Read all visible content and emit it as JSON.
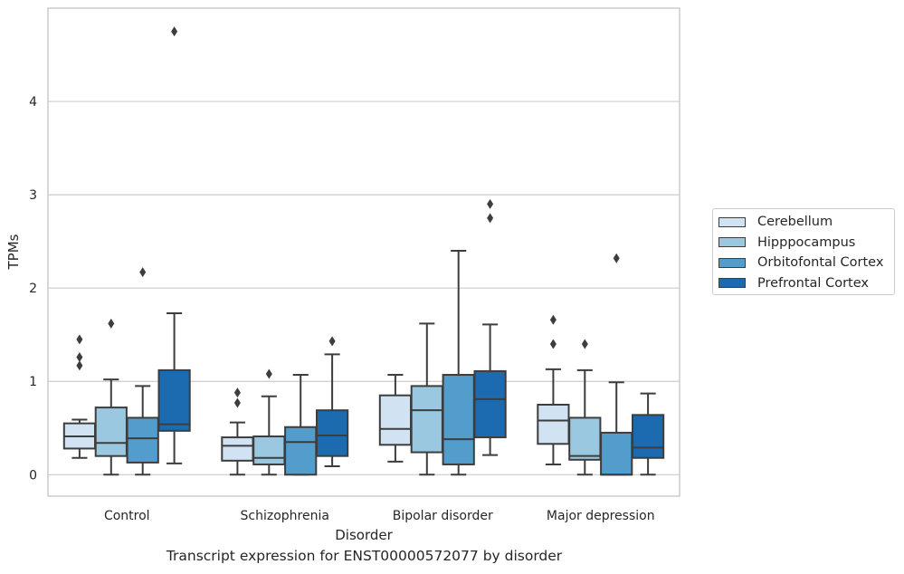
{
  "chart_data": {
    "type": "box",
    "title": "",
    "xlabel": "Disorder",
    "ylabel": "TPMs",
    "caption": "Transcript expression for ENST00000572077 by disorder",
    "ylim": [
      -0.23,
      5.0
    ],
    "yticks": [
      "0",
      "1",
      "2",
      "3",
      "4"
    ],
    "grid": true,
    "legend_position": "right",
    "categories": [
      "Control",
      "Schizophrenia",
      "Bipolar disorder",
      "Major depression"
    ],
    "series": [
      {
        "name": "Cerebellum",
        "color": "#d1e3f3",
        "boxes": [
          {
            "min": 0.18,
            "q1": 0.28,
            "median": 0.41,
            "q3": 0.55,
            "max": 0.59,
            "outliers": [
              1.17,
              1.26,
              1.45
            ]
          },
          {
            "min": 0.0,
            "q1": 0.15,
            "median": 0.31,
            "q3": 0.4,
            "max": 0.56,
            "outliers": [
              0.77,
              0.88
            ]
          },
          {
            "min": 0.14,
            "q1": 0.32,
            "median": 0.49,
            "q3": 0.85,
            "max": 1.07,
            "outliers": []
          },
          {
            "min": 0.11,
            "q1": 0.33,
            "median": 0.58,
            "q3": 0.75,
            "max": 1.13,
            "outliers": [
              1.4,
              1.66
            ]
          }
        ]
      },
      {
        "name": "Hipppocampus",
        "color": "#9ac8e0",
        "boxes": [
          {
            "min": 0.0,
            "q1": 0.2,
            "median": 0.34,
            "q3": 0.72,
            "max": 1.02,
            "outliers": [
              1.62
            ]
          },
          {
            "min": 0.0,
            "q1": 0.11,
            "median": 0.18,
            "q3": 0.41,
            "max": 0.84,
            "outliers": [
              1.08
            ]
          },
          {
            "min": 0.0,
            "q1": 0.24,
            "median": 0.69,
            "q3": 0.95,
            "max": 1.62,
            "outliers": []
          },
          {
            "min": 0.0,
            "q1": 0.16,
            "median": 0.2,
            "q3": 0.61,
            "max": 1.12,
            "outliers": [
              1.4
            ]
          }
        ]
      },
      {
        "name": "Orbitofontal Cortex",
        "color": "#529dcc",
        "boxes": [
          {
            "min": 0.0,
            "q1": 0.13,
            "median": 0.39,
            "q3": 0.61,
            "max": 0.95,
            "outliers": [
              2.17
            ]
          },
          {
            "min": 0.0,
            "q1": 0.0,
            "median": 0.35,
            "q3": 0.51,
            "max": 1.07,
            "outliers": []
          },
          {
            "min": 0.0,
            "q1": 0.11,
            "median": 0.38,
            "q3": 1.07,
            "max": 2.4,
            "outliers": []
          },
          {
            "min": 0.0,
            "q1": 0.0,
            "median": 0.0,
            "q3": 0.45,
            "max": 0.99,
            "outliers": [
              2.32
            ]
          }
        ]
      },
      {
        "name": "Prefrontal Cortex",
        "color": "#1c6aaf",
        "boxes": [
          {
            "min": 0.12,
            "q1": 0.47,
            "median": 0.54,
            "q3": 1.12,
            "max": 1.73,
            "outliers": [
              4.75
            ]
          },
          {
            "min": 0.09,
            "q1": 0.2,
            "median": 0.42,
            "q3": 0.69,
            "max": 1.29,
            "outliers": [
              1.43
            ]
          },
          {
            "min": 0.21,
            "q1": 0.4,
            "median": 0.81,
            "q3": 1.11,
            "max": 1.61,
            "outliers": [
              2.75,
              2.9
            ]
          },
          {
            "min": 0.0,
            "q1": 0.18,
            "median": 0.29,
            "q3": 0.64,
            "max": 0.87,
            "outliers": []
          }
        ]
      }
    ]
  }
}
